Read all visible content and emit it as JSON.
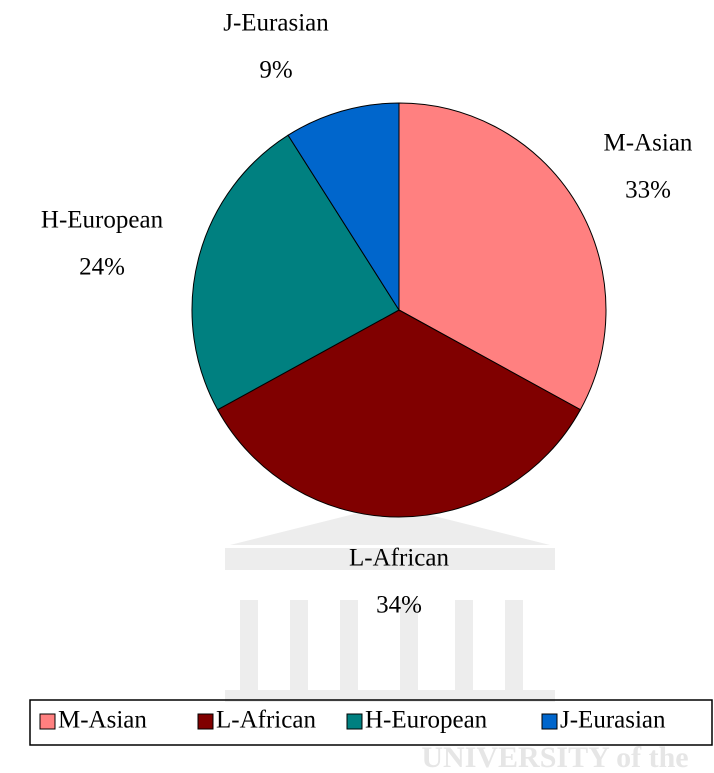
{
  "chart_data": {
    "type": "pie",
    "categories": [
      "M-Asian",
      "L-African",
      "H-European",
      "J-Eurasian"
    ],
    "values": [
      33,
      34,
      24,
      9
    ],
    "value_labels": [
      "33%",
      "34%",
      "24%",
      "9%"
    ],
    "colors": [
      "#ff8080",
      "#800000",
      "#008080",
      "#0066cc"
    ],
    "legend": "bottom",
    "watermark": "UNIVERSITY of the"
  }
}
